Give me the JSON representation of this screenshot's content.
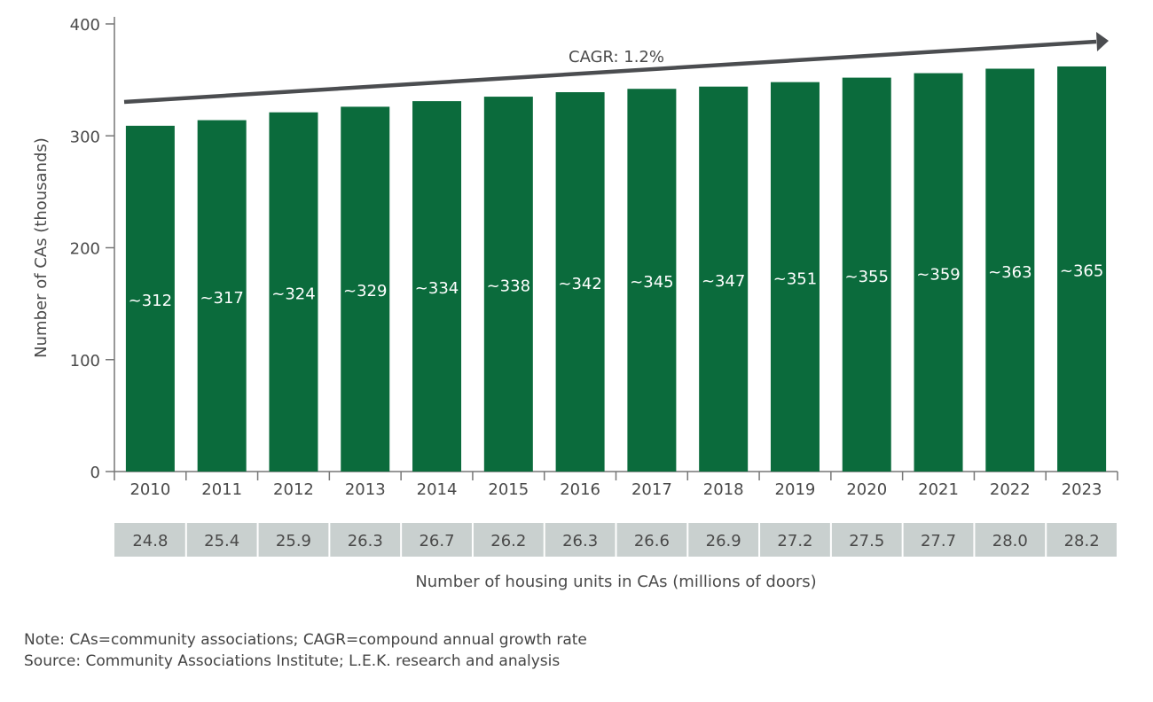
{
  "chart_data": {
    "type": "bar",
    "title": "",
    "ylabel": "Number of CAs (thousands)",
    "xlabel": "",
    "ylim": [
      0,
      400
    ],
    "yticks": [
      0,
      100,
      200,
      300,
      400
    ],
    "grid": false,
    "categories": [
      "2010",
      "2011",
      "2012",
      "2013",
      "2014",
      "2015",
      "2016",
      "2017",
      "2018",
      "2019",
      "2020",
      "2021",
      "2022",
      "2023"
    ],
    "values": [
      312,
      317,
      324,
      329,
      334,
      338,
      342,
      345,
      347,
      351,
      355,
      359,
      363,
      365
    ],
    "data_labels": [
      "~312",
      "~317",
      "~324",
      "~329",
      "~334",
      "~338",
      "~342",
      "~345",
      "~347",
      "~351",
      "~355",
      "~359",
      "~363",
      "~365"
    ],
    "bar_color": "#0b6b3c",
    "trend_annotation": "CAGR: 1.2%",
    "table_row": {
      "label": "Number of housing units in CAs (millions of doors)",
      "values": [
        "24.8",
        "25.4",
        "25.9",
        "26.3",
        "26.7",
        "26.2",
        "26.3",
        "26.6",
        "26.9",
        "27.2",
        "27.5",
        "27.7",
        "28.0",
        "28.2"
      ]
    }
  },
  "notes": {
    "note": "Note: CAs=community associations; CAGR=compound annual growth rate",
    "source": "Source: Community Associations Institute; L.E.K. research and analysis"
  }
}
